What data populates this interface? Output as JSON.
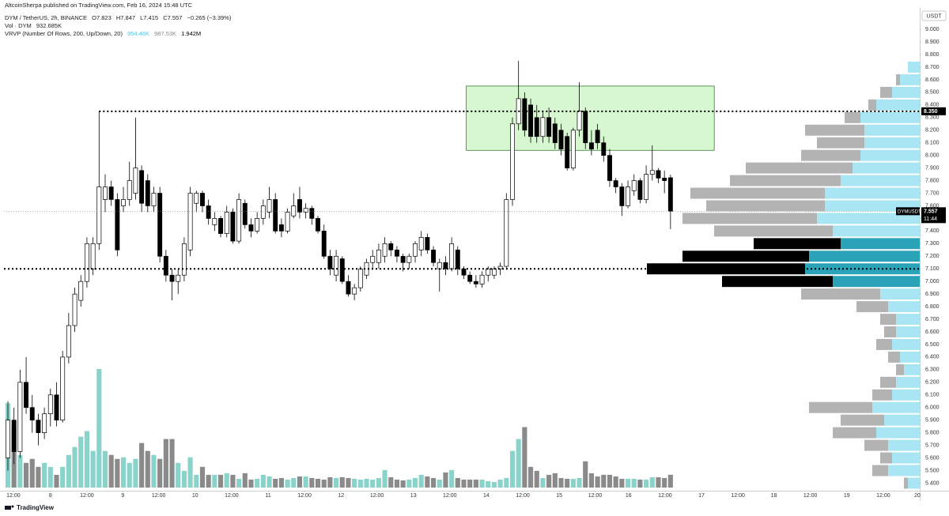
{
  "header": {
    "publisher": "AltcoinSherpa published on TradingView.com, Feb 16, 2024 15:48 UTC"
  },
  "legend": {
    "symbol": "DYM / TetherUS, 2h, BINANCE",
    "ohlc": [
      "O7.823",
      "H7.847",
      "L7.415",
      "C7.557"
    ],
    "change": "−0.265 (−3.39%)",
    "volume_name": "Vol · DYM",
    "volume_value": "932.685K",
    "vrvp_name": "VRVP (Number Of Rows, 200, Up/Down, 20)",
    "vrvp_values": [
      "954.46K",
      "987.53K",
      "1.942M"
    ]
  },
  "footer": {
    "brand": "TradingView"
  },
  "chart_data": {
    "type": "candlestick",
    "grid": false,
    "up_color": "#ffffff",
    "down_color": "#000000",
    "volume_up_color": "#89d3cb",
    "volume_down_color": "#8a8a8a",
    "categories": [
      null,
      null,
      null,
      null,
      null,
      null,
      null,
      null,
      null,
      null,
      null,
      null,
      null,
      null,
      null,
      null,
      null,
      null,
      null,
      null,
      null,
      null,
      null,
      null,
      null,
      null,
      null,
      null,
      null,
      null,
      null,
      null,
      null,
      null,
      null,
      null,
      null,
      null,
      null,
      null,
      null,
      null,
      null,
      null,
      null,
      null,
      null,
      null,
      null,
      null,
      null,
      null,
      null,
      null,
      null,
      null,
      null,
      null,
      null,
      null,
      null,
      null,
      null,
      null,
      null,
      null,
      null,
      null,
      null,
      null,
      null,
      null,
      null,
      null,
      null,
      null,
      null,
      null,
      null,
      null,
      null,
      null,
      null,
      null,
      null,
      null,
      null,
      null,
      null,
      null,
      null,
      null,
      null,
      null,
      null,
      null,
      null,
      null,
      null,
      null,
      null,
      null,
      null,
      null,
      null,
      null,
      null,
      null,
      null,
      null
    ],
    "open": [
      5.6,
      5.9,
      5.65,
      6.2,
      6.0,
      5.9,
      5.8,
      5.95,
      6.1,
      5.9,
      6.4,
      6.65,
      6.85,
      7.0,
      7.1,
      7.3,
      7.65,
      7.75,
      7.65,
      7.6,
      7.65,
      7.7,
      7.88,
      7.8,
      7.6,
      7.7,
      7.2,
      7.05,
      7.0,
      7.05,
      7.25,
      7.62,
      7.7,
      7.6,
      7.45,
      7.5,
      7.38,
      7.55,
      7.32,
      7.62,
      7.45,
      7.4,
      7.5,
      7.55,
      7.65,
      7.45,
      7.4,
      7.52,
      7.65,
      7.55,
      7.58,
      7.5,
      7.4,
      7.2,
      7.05,
      7.18,
      7.0,
      6.9,
      6.95,
      7.05,
      7.15,
      7.15,
      7.2,
      7.3,
      7.25,
      7.2,
      7.15,
      7.2,
      7.25,
      7.35,
      7.25,
      7.1,
      7.15,
      7.1,
      7.25,
      7.1,
      7.05,
      7.0,
      6.98,
      7.05,
      7.05,
      7.1,
      7.12,
      7.65,
      8.25,
      8.45,
      8.4,
      8.3,
      8.15,
      8.3,
      8.25,
      8.2,
      8.15,
      7.9,
      8.2,
      8.35,
      8.1,
      8.2,
      8.1,
      8.0,
      7.8,
      7.75,
      7.6,
      7.72,
      7.8,
      7.65,
      7.85,
      7.88,
      7.82,
      7.823
    ],
    "high": [
      6.05,
      6.0,
      6.3,
      6.4,
      6.1,
      5.95,
      6.0,
      6.15,
      6.2,
      6.45,
      6.75,
      6.95,
      7.05,
      7.35,
      7.35,
      8.35,
      7.85,
      7.8,
      7.7,
      7.75,
      7.95,
      8.3,
      7.92,
      7.85,
      7.75,
      7.75,
      7.25,
      7.1,
      7.1,
      7.35,
      7.75,
      7.72,
      7.72,
      7.65,
      7.55,
      7.52,
      7.6,
      7.58,
      7.7,
      7.65,
      7.5,
      7.55,
      7.65,
      7.75,
      7.7,
      7.5,
      7.58,
      7.7,
      7.75,
      7.62,
      7.6,
      7.52,
      7.45,
      7.25,
      7.25,
      7.2,
      7.05,
      6.98,
      7.12,
      7.18,
      7.25,
      7.3,
      7.35,
      7.32,
      7.28,
      7.22,
      7.22,
      7.32,
      7.4,
      7.38,
      7.28,
      7.18,
      7.2,
      7.35,
      7.28,
      7.12,
      7.08,
      7.05,
      7.08,
      7.12,
      7.12,
      7.15,
      7.7,
      8.3,
      8.75,
      8.5,
      8.45,
      8.4,
      8.35,
      8.38,
      8.3,
      8.25,
      8.18,
      8.22,
      8.58,
      8.38,
      8.2,
      8.25,
      8.15,
      8.05,
      7.82,
      7.78,
      7.8,
      7.85,
      7.82,
      7.92,
      8.08,
      7.9,
      7.88,
      7.847
    ],
    "low": [
      5.5,
      5.55,
      5.6,
      5.95,
      5.8,
      5.7,
      5.75,
      5.85,
      5.85,
      5.88,
      6.35,
      6.6,
      6.8,
      6.95,
      7.05,
      7.25,
      7.55,
      7.6,
      7.2,
      7.55,
      7.6,
      7.65,
      7.55,
      7.55,
      7.55,
      7.15,
      7.0,
      6.85,
      6.9,
      7.0,
      7.2,
      7.55,
      7.55,
      7.45,
      7.4,
      7.35,
      7.35,
      7.3,
      7.3,
      7.42,
      7.35,
      7.38,
      7.45,
      7.5,
      7.38,
      7.35,
      7.38,
      7.5,
      7.5,
      7.5,
      7.45,
      7.38,
      7.18,
      7.05,
      7.0,
      6.98,
      6.88,
      6.85,
      6.92,
      7.02,
      7.1,
      7.1,
      7.15,
      7.2,
      7.15,
      7.08,
      7.1,
      7.15,
      7.2,
      7.22,
      7.12,
      6.92,
      7.05,
      7.08,
      7.05,
      7.02,
      6.98,
      6.95,
      6.95,
      7.0,
      7.02,
      7.05,
      7.1,
      7.6,
      8.2,
      8.15,
      8.1,
      8.1,
      8.1,
      8.1,
      8.05,
      8.0,
      7.88,
      7.88,
      8.15,
      8.05,
      8.0,
      8.05,
      7.95,
      7.75,
      7.7,
      7.52,
      7.58,
      7.68,
      7.62,
      7.62,
      7.8,
      7.78,
      7.7,
      7.415
    ],
    "close": [
      5.9,
      5.65,
      6.2,
      6.0,
      5.9,
      5.8,
      5.95,
      6.1,
      5.9,
      6.4,
      6.65,
      6.9,
      7.0,
      7.3,
      7.3,
      7.75,
      7.75,
      7.65,
      7.25,
      7.65,
      7.8,
      7.9,
      7.62,
      7.6,
      7.7,
      7.2,
      7.05,
      7.0,
      7.05,
      7.3,
      7.7,
      7.7,
      7.6,
      7.5,
      7.5,
      7.38,
      7.55,
      7.32,
      7.65,
      7.45,
      7.4,
      7.5,
      7.6,
      7.65,
      7.4,
      7.4,
      7.55,
      7.6,
      7.55,
      7.58,
      7.5,
      7.4,
      7.2,
      7.1,
      7.2,
      7.0,
      6.9,
      6.95,
      7.1,
      7.15,
      7.2,
      7.25,
      7.3,
      7.25,
      7.2,
      7.15,
      7.2,
      7.3,
      7.35,
      7.25,
      7.15,
      7.15,
      7.1,
      7.3,
      7.1,
      7.05,
      7.0,
      6.98,
      7.05,
      7.1,
      7.1,
      7.12,
      7.65,
      8.25,
      8.45,
      8.2,
      8.15,
      8.15,
      8.3,
      8.15,
      8.1,
      8.05,
      7.9,
      8.2,
      8.35,
      8.1,
      8.05,
      8.1,
      8.0,
      7.8,
      7.75,
      7.6,
      7.75,
      7.8,
      7.65,
      7.85,
      7.88,
      7.82,
      7.8,
      7.557
    ],
    "volume": [
      6148,
      4408,
      2378,
      1798,
      2088,
      1508,
      1798,
      1508,
      928,
      1508,
      2378,
      2958,
      3712,
      4118,
      2668,
      8642,
      2668,
      2378,
      2088,
      2204,
      1798,
      2088,
      3248,
      2668,
      2378,
      2088,
      3538,
      3538,
      1798,
      1218,
      2204,
      928,
      1508,
      928,
      928,
      928,
      1044,
      928,
      638,
      1044,
      580,
      638,
      928,
      812,
      638,
      696,
      580,
      696,
      812,
      812,
      696,
      638,
      580,
      754,
      696,
      754,
      696,
      638,
      580,
      638,
      580,
      696,
      1276,
      754,
      580,
      522,
      580,
      696,
      928,
      812,
      696,
      580,
      1102,
      1276,
      696,
      580,
      580,
      580,
      580,
      464,
      406,
      580,
      696,
      2668,
      3538,
      4408,
      1508,
      1218,
      696,
      928,
      1044,
      696,
      638,
      638,
      696,
      1914,
      1044,
      812,
      928,
      928,
      812,
      638,
      638,
      638,
      580,
      580,
      754,
      754,
      696,
      932.685
    ],
    "xlim": [
      -0.65,
      150
    ],
    "xticks": [
      {
        "value": 0.9,
        "label": "12:00"
      },
      {
        "value": 7.0,
        "label": "8"
      },
      {
        "value": 13.0,
        "label": "12:00"
      },
      {
        "value": 18.9,
        "label": "9"
      },
      {
        "value": 24.8,
        "label": "12:00"
      },
      {
        "value": 30.8,
        "label": "10"
      },
      {
        "value": 36.8,
        "label": "12:00"
      },
      {
        "value": 42.8,
        "label": "11"
      },
      {
        "value": 48.8,
        "label": "12:00"
      },
      {
        "value": 54.8,
        "label": "12"
      },
      {
        "value": 60.7,
        "label": "12:00"
      },
      {
        "value": 66.7,
        "label": "13"
      },
      {
        "value": 72.7,
        "label": "12:00"
      },
      {
        "value": 78.7,
        "label": "14"
      },
      {
        "value": 84.7,
        "label": "12:00"
      },
      {
        "value": 90.7,
        "label": "15"
      },
      {
        "value": 96.6,
        "label": "12:00"
      },
      {
        "value": 102.1,
        "label": "16"
      },
      {
        "value": 108.1,
        "label": "12:00"
      },
      {
        "value": 114.1,
        "label": "17"
      },
      {
        "value": 120.1,
        "label": "12:00"
      },
      {
        "value": 126.0,
        "label": "18"
      },
      {
        "value": 132.0,
        "label": "12:00"
      },
      {
        "value": 138.0,
        "label": "19"
      },
      {
        "value": 144.0,
        "label": "12:00"
      },
      {
        "value": 149.6,
        "label": "20"
      }
    ],
    "ylim": [
      5.34,
      9.17
    ],
    "y_unit": "USDT",
    "yticks": [
      {
        "value": 5.4,
        "label": "5.400"
      },
      {
        "value": 5.5,
        "label": "5.500"
      },
      {
        "value": 5.6,
        "label": "5.600"
      },
      {
        "value": 5.7,
        "label": "5.700"
      },
      {
        "value": 5.8,
        "label": "5.800"
      },
      {
        "value": 5.9,
        "label": "5.900"
      },
      {
        "value": 6.0,
        "label": "6.000"
      },
      {
        "value": 6.1,
        "label": "6.100"
      },
      {
        "value": 6.2,
        "label": "6.200"
      },
      {
        "value": 6.3,
        "label": "6.300"
      },
      {
        "value": 6.4,
        "label": "6.400"
      },
      {
        "value": 6.5,
        "label": "6.500"
      },
      {
        "value": 6.6,
        "label": "6.600"
      },
      {
        "value": 6.7,
        "label": "6.700"
      },
      {
        "value": 6.8,
        "label": "6.800"
      },
      {
        "value": 6.9,
        "label": "6.900"
      },
      {
        "value": 7.0,
        "label": "7.000"
      },
      {
        "value": 7.1,
        "label": "7.100"
      },
      {
        "value": 7.2,
        "label": "7.200"
      },
      {
        "value": 7.3,
        "label": "7.300"
      },
      {
        "value": 7.4,
        "label": "7.400"
      },
      {
        "value": 7.5,
        "label": "7.500"
      },
      {
        "value": 7.6,
        "label": "7.600"
      },
      {
        "value": 7.7,
        "label": "7.700"
      },
      {
        "value": 7.8,
        "label": "7.800"
      },
      {
        "value": 7.9,
        "label": "7.900"
      },
      {
        "value": 8.0,
        "label": "8.000"
      },
      {
        "value": 8.1,
        "label": "8.100"
      },
      {
        "value": 8.2,
        "label": "8.200"
      },
      {
        "value": 8.3,
        "label": "8.300"
      },
      {
        "value": 8.4,
        "label": "8.400"
      },
      {
        "value": 8.5,
        "label": "8.500"
      },
      {
        "value": 8.6,
        "label": "8.600"
      },
      {
        "value": 8.7,
        "label": "8.700"
      },
      {
        "value": 8.8,
        "label": "8.800"
      },
      {
        "value": 8.9,
        "label": "8.900"
      },
      {
        "value": 9.0,
        "label": "9.000"
      }
    ],
    "box": {
      "xlim": [
        75.4,
        116.2
      ],
      "ylim": [
        8.04,
        8.55
      ],
      "color": "#d7f7d0"
    },
    "levels": [
      {
        "value": 8.35,
        "start": 15.0,
        "label": "8.350"
      },
      {
        "value": 7.1,
        "start": -0.65
      }
    ],
    "last_price": {
      "value": 7.557,
      "label": "7.557",
      "symbol": "DYMUSDT",
      "countdown": "11:44"
    },
    "volume_profile": {
      "prices": [
        8.7,
        8.6,
        8.5,
        8.4,
        8.3,
        8.2,
        8.1,
        8.0,
        7.9,
        7.8,
        7.7,
        7.6,
        7.5,
        7.4,
        7.3,
        7.2,
        7.1,
        7.0,
        6.9,
        6.8,
        6.7,
        6.6,
        6.5,
        6.4,
        6.3,
        6.2,
        6.1,
        6.0,
        5.9,
        5.8,
        5.7,
        5.6,
        5.5,
        5.4
      ],
      "up": [
        15,
        25,
        35,
        55,
        75,
        70,
        70,
        75,
        85,
        100,
        120,
        120,
        130,
        110,
        100,
        140,
        145,
        110,
        50,
        40,
        30,
        30,
        35,
        25,
        20,
        30,
        35,
        60,
        45,
        55,
        40,
        35,
        40,
        15
      ],
      "down": [
        0,
        5,
        15,
        10,
        20,
        75,
        60,
        75,
        135,
        140,
        170,
        150,
        170,
        150,
        110,
        160,
        200,
        140,
        100,
        40,
        20,
        15,
        20,
        15,
        10,
        20,
        25,
        80,
        55,
        55,
        30,
        15,
        20,
        5
      ],
      "up_color": "#a8e6f4",
      "down_color": "#b3b3b3",
      "value_area": [
        7.0,
        7.3
      ],
      "va_up_color": "#2aa3b8",
      "va_down_color": "#000000"
    }
  }
}
